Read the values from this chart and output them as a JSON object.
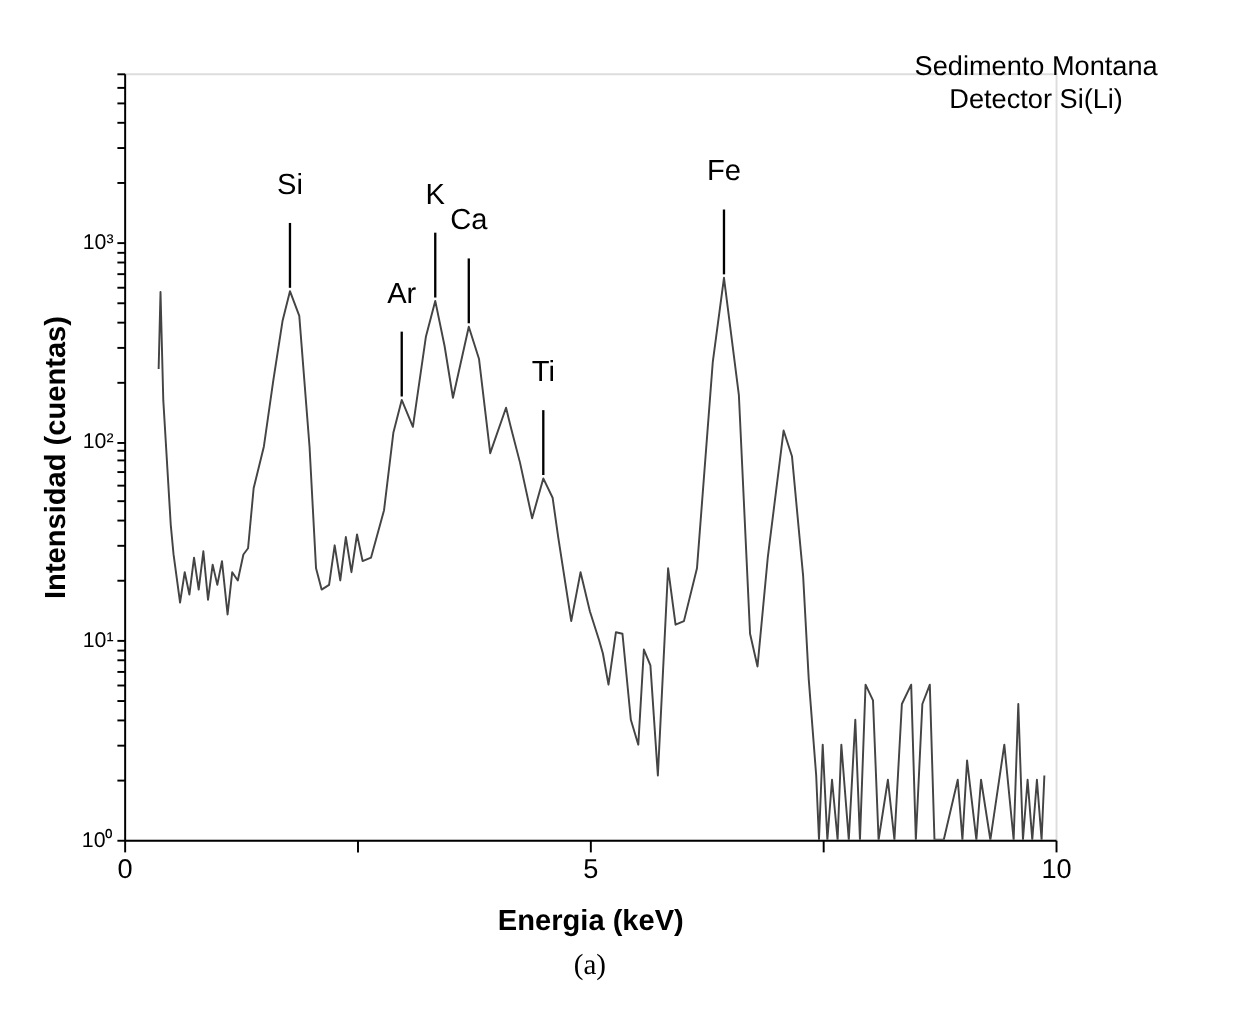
{
  "chart_data": {
    "type": "line",
    "title": "Sedimento Montana",
    "subtitle": "Detector Si(Li)",
    "xlabel": "Energia (keV)",
    "ylabel": "Intensidad (cuentas)",
    "log": "y",
    "grid": false,
    "marker": "none",
    "line_style": "solid",
    "xlim": [
      0,
      10
    ],
    "xticks": [
      0,
      {
        "value": 2.5,
        "label": null
      },
      5,
      {
        "value": 7.5,
        "label": null
      },
      10
    ],
    "ylim": [
      1,
      7000
    ],
    "yticks": [
      {
        "value": 1,
        "label": "10⁰"
      },
      {
        "value": 2,
        "label": null
      },
      {
        "value": 3,
        "label": null
      },
      {
        "value": 4,
        "label": null
      },
      {
        "value": 5,
        "label": null
      },
      {
        "value": 6,
        "label": null
      },
      {
        "value": 7,
        "label": null
      },
      {
        "value": 8,
        "label": null
      },
      {
        "value": 9,
        "label": null
      },
      {
        "value": 10,
        "label": "10¹"
      },
      {
        "value": 20,
        "label": null
      },
      {
        "value": 30,
        "label": null
      },
      {
        "value": 40,
        "label": null
      },
      {
        "value": 50,
        "label": null
      },
      {
        "value": 60,
        "label": null
      },
      {
        "value": 70,
        "label": null
      },
      {
        "value": 80,
        "label": null
      },
      {
        "value": 90,
        "label": null
      },
      {
        "value": 100,
        "label": "10²"
      },
      {
        "value": 200,
        "label": null
      },
      {
        "value": 300,
        "label": null
      },
      {
        "value": 400,
        "label": null
      },
      {
        "value": 500,
        "label": null
      },
      {
        "value": 600,
        "label": null
      },
      {
        "value": 700,
        "label": null
      },
      {
        "value": 800,
        "label": null
      },
      {
        "value": 900,
        "label": null
      },
      {
        "value": 1000,
        "label": "10³"
      },
      {
        "value": 2000,
        "label": null
      },
      {
        "value": 3000,
        "label": null
      },
      {
        "value": 4000,
        "label": null
      },
      {
        "value": 5000,
        "label": null
      },
      {
        "value": 6000,
        "label": null
      },
      {
        "value": 7000,
        "label": null
      }
    ],
    "series": [
      {
        "color": "#444444",
        "x": [
          0.37,
          0.39,
          0.42,
          0.5,
          0.53,
          0.6,
          0.65,
          0.7,
          0.75,
          0.8,
          0.85,
          0.9,
          0.95,
          1.0,
          1.05,
          1.11,
          1.16,
          1.22,
          1.28,
          1.33,
          1.39,
          1.5,
          1.6,
          1.7,
          1.78,
          1.88,
          1.99,
          2.06,
          2.12,
          2.2,
          2.26,
          2.32,
          2.38,
          2.44,
          2.5,
          2.56,
          2.65,
          2.79,
          2.89,
          2.98,
          3.1,
          3.24,
          3.34,
          3.44,
          3.53,
          3.7,
          3.81,
          3.93,
          4.1,
          4.15,
          4.25,
          4.38,
          4.5,
          4.6,
          4.66,
          4.8,
          4.9,
          5.0,
          5.1,
          5.14,
          5.2,
          5.28,
          5.35,
          5.44,
          5.52,
          5.58,
          5.65,
          5.73,
          5.84,
          5.92,
          6.01,
          6.15,
          6.32,
          6.44,
          6.6,
          6.72,
          6.8,
          6.91,
          7.08,
          7.17,
          7.29,
          7.35,
          7.43,
          7.46,
          7.5,
          7.55,
          7.6,
          7.66,
          7.7,
          7.78,
          7.85,
          7.9,
          7.96,
          8.04,
          8.1,
          8.2,
          8.27,
          8.35,
          8.45,
          8.5,
          8.57,
          8.65,
          8.7,
          8.8,
          8.95,
          9.0,
          9.05,
          9.15,
          9.2,
          9.3,
          9.45,
          9.55,
          9.6,
          9.65,
          9.7,
          9.75,
          9.8,
          9.85,
          9.88
        ],
        "values": [
          230,
          560,
          160,
          38,
          27,
          15.5,
          22,
          17,
          26,
          18,
          28,
          16,
          24,
          19,
          25,
          13.5,
          22,
          20,
          27,
          29,
          58,
          94,
          200,
          400,
          565,
          425,
          94,
          23,
          18,
          19,
          30,
          20,
          33,
          22,
          34,
          25,
          26,
          45,
          110,
          161,
          118,
          335,
          505,
          300,
          165,
          375,
          258,
          87,
          147,
          118,
          78,
          41,
          65,
          52,
          33,
          12.5,
          22,
          14,
          10,
          8.6,
          6.0,
          11,
          10.8,
          4,
          3.0,
          9,
          7.5,
          2.1,
          23,
          12,
          12.5,
          23,
          250,
          660,
          170,
          10.8,
          7.4,
          26,
          113,
          84,
          21,
          6.4,
          2.1,
          1,
          3,
          1,
          2,
          1,
          3,
          1,
          4,
          1,
          6.0,
          5,
          1,
          2,
          1,
          4.8,
          6.0,
          1,
          4.8,
          6.0,
          1,
          1,
          2,
          1,
          2.5,
          1,
          2,
          1,
          3,
          1,
          4.8,
          1,
          2,
          1,
          2,
          1,
          2.1
        ]
      }
    ],
    "annotations": [
      {
        "text": "Si",
        "x": 1.78,
        "y": 565
      },
      {
        "text": "Ar",
        "x": 2.98,
        "y": 161
      },
      {
        "text": "K",
        "x": 3.34,
        "y": 505
      },
      {
        "text": "Ca",
        "x": 3.7,
        "y": 375
      },
      {
        "text": "Ti",
        "x": 4.5,
        "y": 65
      },
      {
        "text": "Fe",
        "x": 6.44,
        "y": 660
      },
      "(a)"
    ]
  }
}
